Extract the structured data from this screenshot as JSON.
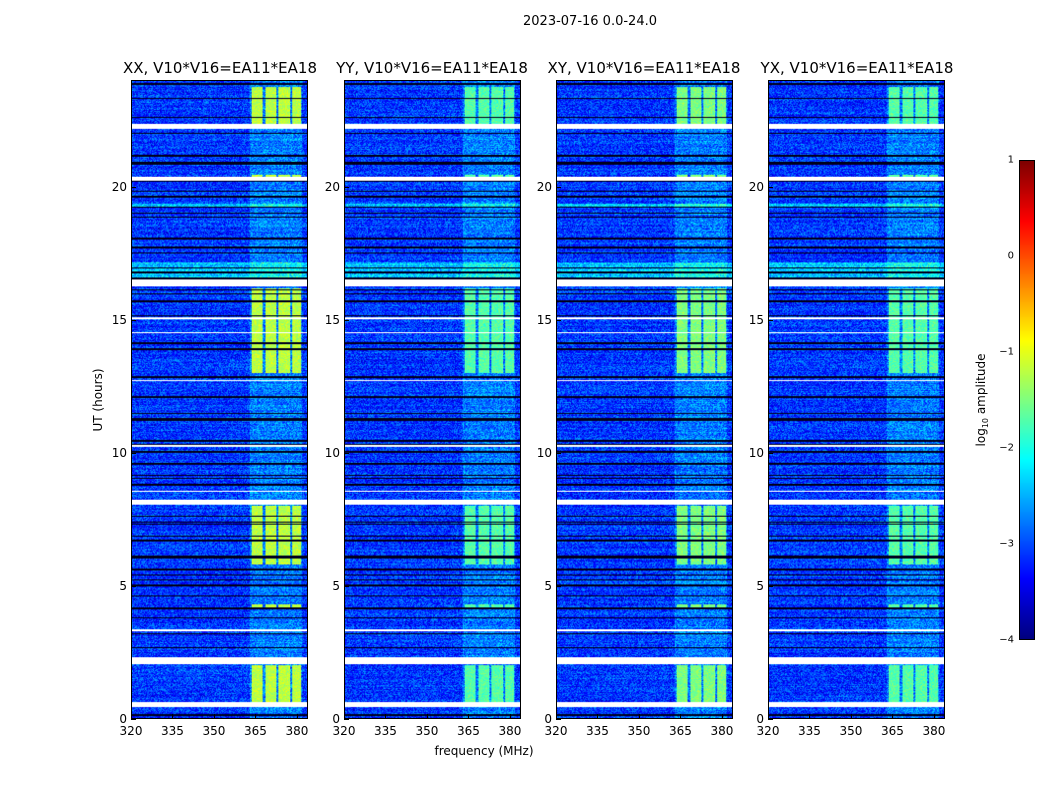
{
  "chart_data": {
    "type": "heatmap",
    "title": "2023-07-16 0.0-24.0",
    "xlabel": "frequency (MHz)",
    "ylabel": "UT (hours)",
    "xlim": [
      320,
      384
    ],
    "ylim": [
      0,
      24
    ],
    "xticks": [
      "320",
      "335",
      "350",
      "365",
      "380"
    ],
    "xtick_values": [
      320,
      335,
      350,
      365,
      380
    ],
    "yticks": [
      "0",
      "5",
      "10",
      "15",
      "20"
    ],
    "ytick_values": [
      0,
      5,
      10,
      15,
      20
    ],
    "panels": [
      {
        "title": "XX, V10*V16=EA11*EA18",
        "rfi_level": -1.2
      },
      {
        "title": "YY, V10*V16=EA11*EA18",
        "rfi_level": -1.7
      },
      {
        "title": "XY, V10*V16=EA11*EA18",
        "rfi_level": -1.5
      },
      {
        "title": "YX, V10*V16=EA11*EA18",
        "rfi_level": -1.7
      }
    ],
    "background_level": -3.1,
    "rfi_subbands_mhz": [
      [
        363.5,
        367.5
      ],
      [
        368.5,
        372.5
      ],
      [
        373.5,
        377.5
      ],
      [
        378.5,
        381.5
      ]
    ],
    "rfi_time_ranges_hours": [
      [
        0.6,
        2.0
      ],
      [
        4.1,
        4.3
      ],
      [
        5.8,
        8.0
      ],
      [
        13.0,
        16.2
      ],
      [
        20.3,
        20.5
      ],
      [
        22.3,
        23.8
      ]
    ],
    "enhanced_time_ranges_hours": [
      [
        16.5,
        17.2
      ],
      [
        19.3,
        19.4
      ]
    ],
    "flagged_time_ranges_hours": [
      [
        0.45,
        0.62
      ],
      [
        2.05,
        2.3
      ],
      [
        8.05,
        8.25
      ],
      [
        8.55,
        8.6
      ],
      [
        16.3,
        16.55
      ],
      [
        20.25,
        20.4
      ],
      [
        22.2,
        22.4
      ],
      [
        10.25,
        10.3
      ],
      [
        3.3,
        3.35
      ],
      [
        15.05,
        15.1
      ],
      [
        14.5,
        14.55
      ],
      [
        12.7,
        12.75
      ]
    ],
    "colorbar": {
      "label_main": "log",
      "label_sub": "10",
      "label_rest": " amplitude",
      "range": [
        -4,
        1
      ],
      "ticks": [
        "1",
        "0",
        "−1",
        "−2",
        "−3",
        "−4"
      ],
      "tick_values": [
        1,
        0,
        -1,
        -2,
        -3,
        -4
      ],
      "colormap": "jet"
    }
  }
}
